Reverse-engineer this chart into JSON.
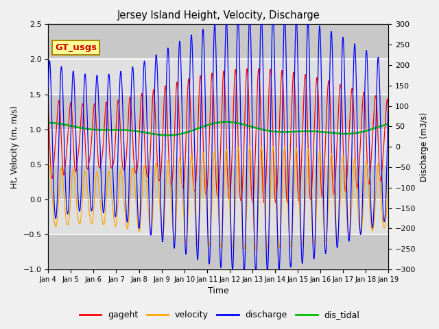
{
  "title": "Jersey Island Height, Velocity, Discharge",
  "xlabel": "Time",
  "ylabel_left": "Ht, Velocity (m, m/s)",
  "ylabel_right": "Discharge (m3/s)",
  "ylim_left": [
    -1.0,
    2.5
  ],
  "ylim_right": [
    -300,
    300
  ],
  "yticks_left": [
    -1.0,
    -0.5,
    0.0,
    0.5,
    1.0,
    1.5,
    2.0,
    2.5
  ],
  "yticks_right": [
    -300,
    -250,
    -200,
    -150,
    -100,
    -50,
    0,
    50,
    100,
    150,
    200,
    250,
    300
  ],
  "xtick_labels": [
    "Jan 4",
    "Jan 5",
    "Jan 6",
    "Jan 7",
    "Jan 8",
    "Jan 9",
    "Jan 10",
    "Jan 11",
    "Jan 12",
    "Jan 13",
    "Jan 14",
    "Jan 15",
    "Jan 16",
    "Jan 17",
    "Jan 18",
    "Jan 19"
  ],
  "legend_labels": [
    "gageht",
    "velocity",
    "discharge",
    "dis_tidal"
  ],
  "legend_colors": [
    "#ff0000",
    "#ffa500",
    "#0000ff",
    "#00bb00"
  ],
  "annotation_text": "GT_usgs",
  "annotation_bbox_facecolor": "#ffff99",
  "annotation_bbox_edgecolor": "#aa8800",
  "gageht_color": "#ff0000",
  "velocity_color": "#ffa500",
  "discharge_color": "#0000ff",
  "dis_tidal_color": "#00bb00",
  "plot_bg_color": "#d8d8d8",
  "fig_bg_color": "#f0f0f0",
  "grid_color": "#ffffff",
  "tidal_period_hours": 12.42,
  "n_days": 15
}
